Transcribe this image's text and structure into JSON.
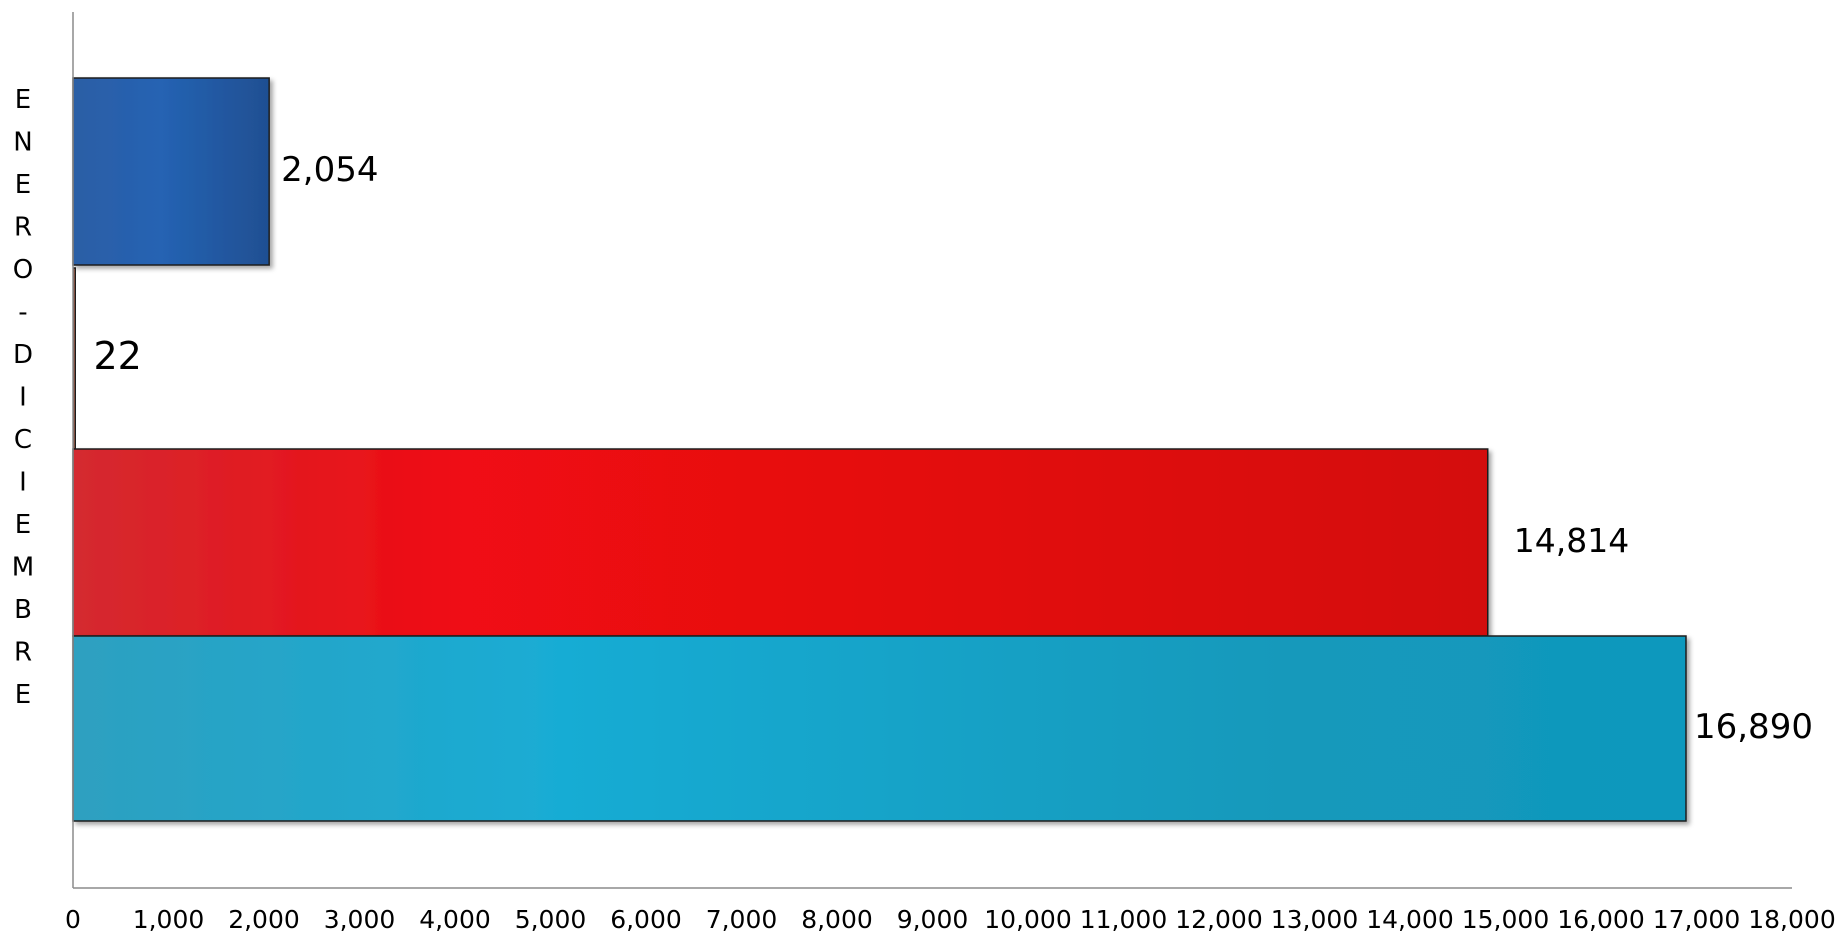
{
  "chart_data": {
    "type": "bar",
    "orientation": "horizontal",
    "category_label": "ENERO - DICIEMBRE",
    "series": [
      {
        "value": 2054,
        "label": "2,054",
        "color": "#2a5ea8"
      },
      {
        "value": 22,
        "label": "22",
        "color": "#9a5a4a"
      },
      {
        "value": 14814,
        "label": "14,814",
        "color": "#e00b12"
      },
      {
        "value": 16890,
        "label": "16,890",
        "color": "#17a3c9"
      }
    ],
    "x_ticks": [
      "0",
      "1,000",
      "2,000",
      "3,000",
      "4,000",
      "5,000",
      "6,000",
      "7,000",
      "8,000",
      "9,000",
      "10,000",
      "11,000",
      "12,000",
      "13,000",
      "14,000",
      "15,000",
      "16,000",
      "17,000",
      "18,000"
    ],
    "xlim": [
      0,
      18000
    ],
    "grid": false,
    "legend": "none"
  }
}
